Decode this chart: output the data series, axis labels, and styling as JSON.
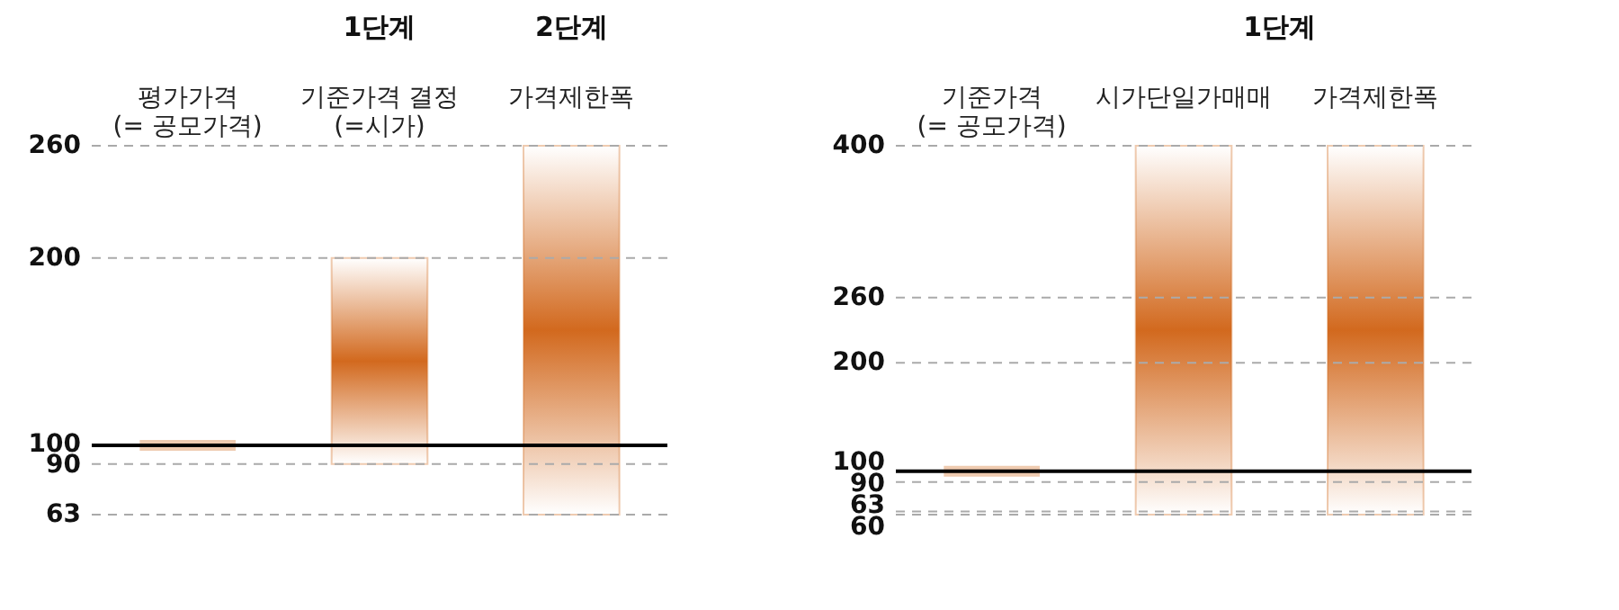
{
  "chart_data": [
    {
      "type": "bar",
      "categories": [
        "평가가격\n(= 공모가격)",
        "기준가격 결정\n(=시가)",
        "가격제한폭"
      ],
      "base": [
        100,
        90,
        63
      ],
      "values": [
        0,
        110,
        197
      ],
      "color": "#d2691e",
      "ylim": [
        63,
        260
      ],
      "yticks": [
        63,
        90,
        100,
        200,
        260
      ],
      "grid": "y",
      "ref_lines": [
        {
          "axis": "y",
          "value": 100,
          "color": "#000000"
        }
      ],
      "annotations": [
        "1단계",
        "2단계"
      ]
    },
    {
      "type": "bar",
      "categories": [
        "기준가격\n(= 공모가격)",
        "시가단일가매매",
        "가격제한폭"
      ],
      "base": [
        100,
        60,
        60
      ],
      "values": [
        0,
        340,
        340
      ],
      "color": "#d2691e",
      "ylim": [
        60,
        400
      ],
      "yticks": [
        60,
        63,
        90,
        100,
        200,
        260,
        400
      ],
      "grid": "y",
      "ref_lines": [
        {
          "axis": "y",
          "value": 100,
          "color": "#000000"
        }
      ],
      "annotations": [
        "1단계"
      ]
    }
  ]
}
